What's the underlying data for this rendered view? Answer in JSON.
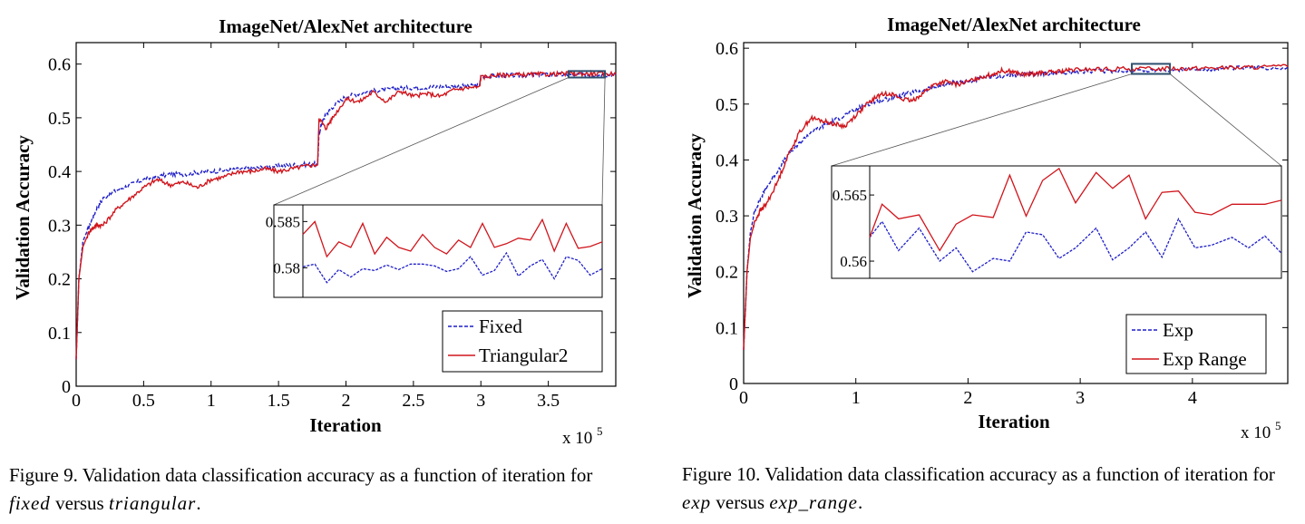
{
  "chart_data": [
    {
      "type": "line",
      "title": "ImageNet/AlexNet architecture",
      "xlabel": "Iteration",
      "ylabel": "Validation Accuracy",
      "x_multiplier": "x 10",
      "x_multiplier_exp": "5",
      "xlim": [
        0,
        4.0
      ],
      "ylim": [
        0,
        0.64
      ],
      "xticks": [
        0,
        0.5,
        1,
        1.5,
        2,
        2.5,
        3,
        3.5
      ],
      "xtick_labels": [
        "0",
        "0.5",
        "1",
        "1.5",
        "2",
        "2.5",
        "3",
        "3.5"
      ],
      "yticks": [
        0,
        0.1,
        0.2,
        0.3,
        0.4,
        0.5,
        0.6
      ],
      "ytick_labels": [
        "0",
        "0.1",
        "0.2",
        "0.3",
        "0.4",
        "0.5",
        "0.6"
      ],
      "legend_position": "bottom-right",
      "series": [
        {
          "name": "Fixed",
          "color": "#1f1fc8",
          "style": "dashed",
          "x": [
            0,
            0.02,
            0.05,
            0.1,
            0.15,
            0.2,
            0.3,
            0.4,
            0.5,
            0.6,
            0.7,
            0.8,
            0.9,
            1.0,
            1.1,
            1.2,
            1.3,
            1.4,
            1.5,
            1.6,
            1.7,
            1.79,
            1.8,
            1.82,
            1.85,
            1.9,
            2.0,
            2.1,
            2.2,
            2.3,
            2.4,
            2.5,
            2.6,
            2.7,
            2.8,
            2.9,
            2.99,
            3.0,
            3.1,
            3.2,
            3.3,
            3.4,
            3.5,
            3.6,
            3.7,
            3.8,
            3.9,
            4.0
          ],
          "y": [
            0.05,
            0.2,
            0.27,
            0.3,
            0.33,
            0.35,
            0.365,
            0.375,
            0.385,
            0.39,
            0.395,
            0.395,
            0.398,
            0.4,
            0.402,
            0.404,
            0.406,
            0.408,
            0.41,
            0.412,
            0.413,
            0.414,
            0.47,
            0.49,
            0.505,
            0.52,
            0.54,
            0.545,
            0.55,
            0.552,
            0.555,
            0.556,
            0.557,
            0.558,
            0.558,
            0.559,
            0.56,
            0.576,
            0.578,
            0.579,
            0.579,
            0.58,
            0.58,
            0.58,
            0.58,
            0.58,
            0.58,
            0.58
          ]
        },
        {
          "name": "Triangular2",
          "color": "#d0151c",
          "style": "solid",
          "x": [
            0,
            0.02,
            0.05,
            0.1,
            0.15,
            0.2,
            0.3,
            0.4,
            0.5,
            0.6,
            0.7,
            0.8,
            0.9,
            1.0,
            1.1,
            1.2,
            1.3,
            1.4,
            1.5,
            1.6,
            1.7,
            1.79,
            1.8,
            1.85,
            1.9,
            2.0,
            2.1,
            2.2,
            2.3,
            2.4,
            2.5,
            2.6,
            2.7,
            2.8,
            2.9,
            2.99,
            3.0,
            3.1,
            3.2,
            3.3,
            3.4,
            3.5,
            3.6,
            3.7,
            3.8,
            3.9,
            4.0
          ],
          "y": [
            0.05,
            0.2,
            0.26,
            0.29,
            0.3,
            0.3,
            0.33,
            0.35,
            0.37,
            0.385,
            0.375,
            0.38,
            0.37,
            0.385,
            0.39,
            0.4,
            0.4,
            0.405,
            0.4,
            0.405,
            0.41,
            0.413,
            0.5,
            0.48,
            0.5,
            0.535,
            0.53,
            0.548,
            0.53,
            0.55,
            0.54,
            0.545,
            0.54,
            0.552,
            0.556,
            0.557,
            0.575,
            0.579,
            0.58,
            0.58,
            0.581,
            0.581,
            0.582,
            0.582,
            0.582,
            0.582,
            0.582
          ]
        }
      ],
      "inset": {
        "ytick_labels": [
          "0.585",
          "0.58"
        ],
        "yticks": [
          0.585,
          0.58
        ],
        "ylim": [
          0.5768,
          0.5868
        ],
        "xlim": [
          0,
          1
        ],
        "series": [
          {
            "name": "Fixed",
            "color": "#1f1fc8",
            "style": "dashed",
            "x": [
              0,
              0.04,
              0.08,
              0.12,
              0.16,
              0.2,
              0.24,
              0.28,
              0.32,
              0.36,
              0.4,
              0.44,
              0.48,
              0.52,
              0.56,
              0.6,
              0.64,
              0.68,
              0.72,
              0.76,
              0.8,
              0.84,
              0.88,
              0.92,
              0.96,
              1.0
            ],
            "y": [
              0.5801,
              0.5804,
              0.5784,
              0.5798,
              0.579,
              0.5799,
              0.5797,
              0.5803,
              0.5798,
              0.5804,
              0.5804,
              0.5802,
              0.5796,
              0.5799,
              0.5812,
              0.5792,
              0.5797,
              0.5816,
              0.5791,
              0.5802,
              0.5809,
              0.5788,
              0.5812,
              0.5808,
              0.5792,
              0.5799
            ]
          },
          {
            "name": "Triangular2",
            "color": "#d0151c",
            "style": "solid",
            "x": [
              0,
              0.04,
              0.08,
              0.12,
              0.16,
              0.2,
              0.24,
              0.28,
              0.32,
              0.36,
              0.4,
              0.44,
              0.48,
              0.52,
              0.56,
              0.6,
              0.64,
              0.68,
              0.72,
              0.76,
              0.8,
              0.84,
              0.88,
              0.92,
              0.96,
              1.0
            ],
            "y": [
              0.5836,
              0.585,
              0.5812,
              0.5828,
              0.5822,
              0.5848,
              0.5815,
              0.5833,
              0.5822,
              0.5818,
              0.5836,
              0.5822,
              0.5815,
              0.583,
              0.5822,
              0.5848,
              0.5822,
              0.5826,
              0.5832,
              0.583,
              0.5852,
              0.5818,
              0.5848,
              0.5821,
              0.5823,
              0.5828
            ]
          }
        ]
      }
    },
    {
      "type": "line",
      "title": "ImageNet/AlexNet architecture",
      "xlabel": "Iteration",
      "ylabel": "Validation Accuracy",
      "x_multiplier": "x 10",
      "x_multiplier_exp": "5",
      "xlim": [
        0,
        4.85
      ],
      "ylim": [
        0,
        0.61
      ],
      "xticks": [
        0,
        1,
        2,
        3,
        4
      ],
      "xtick_labels": [
        "0",
        "1",
        "2",
        "3",
        "4"
      ],
      "yticks": [
        0,
        0.1,
        0.2,
        0.3,
        0.4,
        0.5,
        0.6
      ],
      "ytick_labels": [
        "0",
        "0.1",
        "0.2",
        "0.3",
        "0.4",
        "0.5",
        "0.6"
      ],
      "legend_position": "bottom-right",
      "series": [
        {
          "name": "Exp",
          "color": "#1f1fc8",
          "style": "dashed",
          "x": [
            0,
            0.03,
            0.06,
            0.1,
            0.15,
            0.2,
            0.3,
            0.4,
            0.5,
            0.6,
            0.7,
            0.8,
            0.9,
            1.0,
            1.1,
            1.2,
            1.3,
            1.4,
            1.5,
            1.6,
            1.7,
            1.8,
            1.9,
            2.0,
            2.1,
            2.2,
            2.3,
            2.4,
            2.5,
            2.6,
            2.7,
            2.8,
            2.9,
            3.0,
            3.2,
            3.4,
            3.6,
            3.8,
            4.0,
            4.2,
            4.4,
            4.6,
            4.85
          ],
          "y": [
            0.06,
            0.2,
            0.27,
            0.31,
            0.33,
            0.35,
            0.38,
            0.41,
            0.43,
            0.45,
            0.46,
            0.47,
            0.48,
            0.49,
            0.5,
            0.505,
            0.51,
            0.515,
            0.52,
            0.525,
            0.53,
            0.535,
            0.54,
            0.54,
            0.545,
            0.548,
            0.55,
            0.552,
            0.553,
            0.554,
            0.555,
            0.556,
            0.557,
            0.558,
            0.559,
            0.56,
            0.56,
            0.561,
            0.562,
            0.563,
            0.564,
            0.565,
            0.566
          ]
        },
        {
          "name": "Exp Range",
          "color": "#d0151c",
          "style": "solid",
          "x": [
            0,
            0.03,
            0.06,
            0.1,
            0.15,
            0.2,
            0.3,
            0.4,
            0.5,
            0.6,
            0.7,
            0.8,
            0.9,
            1.0,
            1.1,
            1.2,
            1.3,
            1.4,
            1.5,
            1.6,
            1.7,
            1.8,
            1.9,
            2.0,
            2.1,
            2.2,
            2.3,
            2.4,
            2.5,
            2.6,
            2.7,
            2.8,
            2.9,
            3.0,
            3.2,
            3.4,
            3.6,
            3.8,
            4.0,
            4.2,
            4.4,
            4.6,
            4.85
          ],
          "y": [
            0.06,
            0.2,
            0.26,
            0.29,
            0.31,
            0.32,
            0.36,
            0.41,
            0.45,
            0.475,
            0.47,
            0.465,
            0.46,
            0.48,
            0.5,
            0.515,
            0.52,
            0.51,
            0.505,
            0.52,
            0.535,
            0.54,
            0.535,
            0.54,
            0.548,
            0.552,
            0.56,
            0.558,
            0.552,
            0.555,
            0.556,
            0.558,
            0.56,
            0.562,
            0.562,
            0.563,
            0.563,
            0.564,
            0.564,
            0.565,
            0.565,
            0.566,
            0.567
          ]
        }
      ],
      "inset": {
        "ytick_labels": [
          "0.565",
          "0.56"
        ],
        "yticks": [
          0.565,
          0.56
        ],
        "ylim": [
          0.5587,
          0.5672
        ],
        "xlim": [
          0,
          1
        ],
        "series": [
          {
            "name": "Exp",
            "color": "#1f1fc8",
            "style": "dashed",
            "x": [
              0,
              0.03,
              0.07,
              0.12,
              0.17,
              0.21,
              0.25,
              0.3,
              0.34,
              0.38,
              0.42,
              0.46,
              0.5,
              0.55,
              0.59,
              0.63,
              0.67,
              0.71,
              0.75,
              0.79,
              0.83,
              0.88,
              0.92,
              0.96,
              1.0
            ],
            "y": [
              0.5618,
              0.563,
              0.5608,
              0.5625,
              0.56,
              0.561,
              0.5592,
              0.5602,
              0.56,
              0.5622,
              0.562,
              0.5602,
              0.561,
              0.5625,
              0.5601,
              0.561,
              0.5622,
              0.5603,
              0.5632,
              0.561,
              0.5612,
              0.5618,
              0.561,
              0.5619,
              0.5606
            ]
          },
          {
            "name": "Exp Range",
            "color": "#d0151c",
            "style": "solid",
            "x": [
              0,
              0.03,
              0.07,
              0.12,
              0.17,
              0.21,
              0.25,
              0.3,
              0.34,
              0.38,
              0.42,
              0.46,
              0.5,
              0.55,
              0.59,
              0.63,
              0.67,
              0.71,
              0.75,
              0.79,
              0.83,
              0.88,
              0.92,
              0.96,
              1.0
            ],
            "y": [
              0.5618,
              0.5643,
              0.5632,
              0.5635,
              0.5608,
              0.5628,
              0.5635,
              0.5633,
              0.5665,
              0.5634,
              0.5661,
              0.567,
              0.5644,
              0.5667,
              0.5655,
              0.5665,
              0.5632,
              0.5652,
              0.5653,
              0.5637,
              0.5635,
              0.5643,
              0.5643,
              0.5643,
              0.5646
            ]
          }
        ]
      }
    }
  ],
  "captions": [
    {
      "pre": "Figure 9. Validation data classification accuracy as a function of iteration for ",
      "a": "fixed",
      "mid": " versus ",
      "b": "triangular",
      "post": "."
    },
    {
      "pre": "Figure 10. Validation data classification accuracy as a function of iteration for ",
      "a": "exp",
      "mid": " versus ",
      "b": "exp_range",
      "post": "."
    }
  ]
}
